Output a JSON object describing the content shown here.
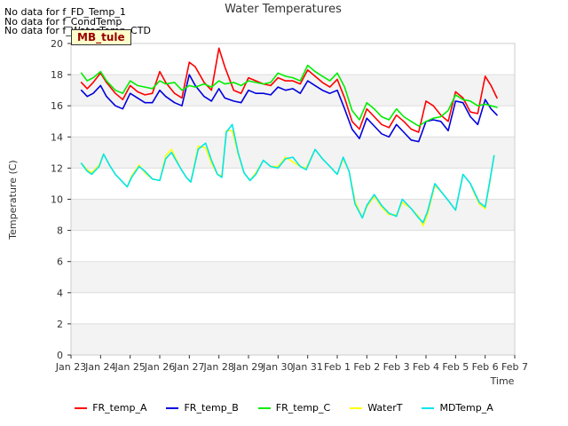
{
  "no_data_messages": [
    "No data for f_FD_Temp_1",
    "No data for f_CondTemp",
    "No data for f_WaterTemp_CTD"
  ],
  "badge": "MB_tule",
  "chart_data": {
    "type": "line",
    "title": "Water Temperatures",
    "xlabel": "Time",
    "ylabel": "Temperature (C)",
    "ylim": [
      0,
      20
    ],
    "yticks": [
      0,
      2,
      4,
      6,
      8,
      10,
      12,
      14,
      16,
      18,
      20
    ],
    "xlim": [
      0,
      15
    ],
    "x_tick_labels": [
      "Jan 23",
      "Jan 24",
      "Jan 25",
      "Jan 26",
      "Jan 27",
      "Jan 28",
      "Jan 29",
      "Jan 30",
      "Jan 31",
      "Feb 1",
      "Feb 2",
      "Feb 3",
      "Feb 4",
      "Feb 5",
      "Feb 6",
      "Feb 7"
    ],
    "x_unit": "days since Jan 23",
    "grid": "horizontal bands",
    "legend_position": "bottom",
    "series": [
      {
        "name": "FR_temp_A",
        "color": "#ff0000",
        "x": [
          0.35,
          0.55,
          0.75,
          1.0,
          1.2,
          1.5,
          1.75,
          2.0,
          2.25,
          2.5,
          2.75,
          3.0,
          3.2,
          3.5,
          3.75,
          4.0,
          4.2,
          4.5,
          4.75,
          5.0,
          5.2,
          5.5,
          5.75,
          6.0,
          6.25,
          6.5,
          6.75,
          7.0,
          7.25,
          7.5,
          7.75,
          8.0,
          8.25,
          8.5,
          8.75,
          9.0,
          9.25,
          9.5,
          9.75,
          10.0,
          10.25,
          10.5,
          10.75,
          11.0,
          11.25,
          11.5,
          11.75,
          12.0,
          12.25,
          12.5,
          12.75,
          13.0,
          13.25,
          13.5,
          13.75,
          14.0,
          14.2,
          14.4
        ],
        "y": [
          17.5,
          17.1,
          17.5,
          18.1,
          17.5,
          16.8,
          16.4,
          17.3,
          16.9,
          16.7,
          16.8,
          18.2,
          17.5,
          16.8,
          16.5,
          18.8,
          18.5,
          17.5,
          17.0,
          19.7,
          18.5,
          17.0,
          16.8,
          17.8,
          17.6,
          17.4,
          17.3,
          17.8,
          17.6,
          17.6,
          17.4,
          18.3,
          17.9,
          17.5,
          17.2,
          17.7,
          16.5,
          15.0,
          14.5,
          15.8,
          15.3,
          14.8,
          14.6,
          15.4,
          15.0,
          14.5,
          14.3,
          16.3,
          16.0,
          15.4,
          15.0,
          16.9,
          16.5,
          15.6,
          15.5,
          17.9,
          17.3,
          16.5
        ]
      },
      {
        "name": "FR_temp_B",
        "color": "#0000dd",
        "x": [
          0.35,
          0.55,
          0.75,
          1.0,
          1.2,
          1.5,
          1.75,
          2.0,
          2.25,
          2.5,
          2.75,
          3.0,
          3.2,
          3.5,
          3.75,
          4.0,
          4.2,
          4.5,
          4.75,
          5.0,
          5.2,
          5.5,
          5.75,
          6.0,
          6.25,
          6.5,
          6.75,
          7.0,
          7.25,
          7.5,
          7.75,
          8.0,
          8.25,
          8.5,
          8.75,
          9.0,
          9.25,
          9.5,
          9.75,
          10.0,
          10.25,
          10.5,
          10.75,
          11.0,
          11.25,
          11.5,
          11.75,
          12.0,
          12.25,
          12.5,
          12.75,
          13.0,
          13.25,
          13.5,
          13.75,
          14.0,
          14.2,
          14.4
        ],
        "y": [
          17.0,
          16.6,
          16.8,
          17.3,
          16.6,
          16.0,
          15.8,
          16.8,
          16.5,
          16.2,
          16.2,
          17.0,
          16.6,
          16.2,
          16.0,
          18.0,
          17.3,
          16.6,
          16.3,
          17.1,
          16.5,
          16.3,
          16.2,
          17.0,
          16.8,
          16.8,
          16.7,
          17.2,
          17.0,
          17.1,
          16.8,
          17.6,
          17.3,
          17.0,
          16.8,
          17.0,
          15.8,
          14.5,
          13.9,
          15.2,
          14.7,
          14.2,
          14.0,
          14.8,
          14.3,
          13.8,
          13.7,
          15.0,
          15.1,
          15.0,
          14.4,
          16.3,
          16.2,
          15.3,
          14.8,
          16.4,
          15.8,
          15.4
        ]
      },
      {
        "name": "FR_temp_C",
        "color": "#00ee00",
        "x": [
          0.35,
          0.55,
          0.75,
          1.0,
          1.2,
          1.5,
          1.75,
          2.0,
          2.25,
          2.5,
          2.75,
          3.0,
          3.2,
          3.5,
          3.75,
          4.0,
          4.2,
          4.5,
          4.75,
          5.0,
          5.2,
          5.5,
          5.75,
          6.0,
          6.25,
          6.5,
          6.75,
          7.0,
          7.25,
          7.5,
          7.75,
          8.0,
          8.25,
          8.5,
          8.75,
          9.0,
          9.25,
          9.5,
          9.75,
          10.0,
          10.25,
          10.5,
          10.75,
          11.0,
          11.25,
          11.5,
          11.75,
          12.0,
          12.25,
          12.5,
          12.75,
          13.0,
          13.25,
          13.5,
          13.75,
          14.0,
          14.2,
          14.4
        ],
        "y": [
          18.1,
          17.6,
          17.8,
          18.2,
          17.6,
          17.0,
          16.8,
          17.6,
          17.3,
          17.2,
          17.1,
          17.6,
          17.4,
          17.5,
          17.0,
          17.3,
          17.2,
          17.4,
          17.2,
          17.6,
          17.4,
          17.5,
          17.3,
          17.6,
          17.5,
          17.4,
          17.5,
          18.1,
          17.9,
          17.8,
          17.6,
          18.6,
          18.2,
          17.9,
          17.6,
          18.1,
          17.2,
          15.7,
          15.1,
          16.2,
          15.8,
          15.3,
          15.1,
          15.8,
          15.3,
          15.0,
          14.7,
          15.0,
          15.2,
          15.3,
          15.7,
          16.7,
          16.4,
          16.3,
          16.0,
          16.1,
          16.0,
          15.9
        ]
      },
      {
        "name": "WaterT",
        "color": "#ffff00",
        "x": [
          0.35,
          0.55,
          0.7,
          0.95,
          1.1,
          1.3,
          1.5,
          1.75,
          1.9,
          2.05,
          2.3,
          2.5,
          2.75,
          3.0,
          3.2,
          3.4,
          3.7,
          3.9,
          4.05,
          4.3,
          4.55,
          4.75,
          4.95,
          5.1,
          5.25,
          5.45,
          5.65,
          5.85,
          6.05,
          6.25,
          6.5,
          6.75,
          7.0,
          7.25,
          7.5,
          7.75,
          7.95,
          8.25,
          8.5,
          8.75,
          9.0,
          9.2,
          9.4,
          9.6,
          9.85,
          10.0,
          10.25,
          10.5,
          10.75,
          11.0,
          11.2,
          11.5,
          11.75,
          11.9,
          12.05,
          12.3,
          12.55,
          12.8,
          13.0,
          13.25,
          13.5,
          13.65,
          13.8,
          14.0,
          14.15,
          14.3
        ],
        "y": [
          12.3,
          11.9,
          11.7,
          12.2,
          12.9,
          12.2,
          11.6,
          11.1,
          10.8,
          11.5,
          12.2,
          11.7,
          11.3,
          11.2,
          12.8,
          13.2,
          12.0,
          11.4,
          11.1,
          13.4,
          13.3,
          12.3,
          11.6,
          11.5,
          14.4,
          14.4,
          12.9,
          11.7,
          11.2,
          11.7,
          12.5,
          12.1,
          12.1,
          12.7,
          12.4,
          12.1,
          12.0,
          13.2,
          12.6,
          12.1,
          11.6,
          12.6,
          11.8,
          9.9,
          8.8,
          9.5,
          10.2,
          9.5,
          9.0,
          9.0,
          9.8,
          9.4,
          8.9,
          8.3,
          9.0,
          10.9,
          10.4,
          9.8,
          9.3,
          11.6,
          11.0,
          10.3,
          9.7,
          9.4,
          11.0,
          12.8
        ]
      },
      {
        "name": "MDTemp_A",
        "color": "#00e5ee",
        "x": [
          0.35,
          0.55,
          0.7,
          0.95,
          1.1,
          1.3,
          1.5,
          1.75,
          1.9,
          2.05,
          2.3,
          2.5,
          2.75,
          3.0,
          3.2,
          3.4,
          3.7,
          3.9,
          4.05,
          4.3,
          4.55,
          4.75,
          4.95,
          5.1,
          5.25,
          5.45,
          5.65,
          5.85,
          6.05,
          6.25,
          6.5,
          6.75,
          7.0,
          7.25,
          7.5,
          7.75,
          7.95,
          8.25,
          8.5,
          8.75,
          9.0,
          9.2,
          9.4,
          9.6,
          9.85,
          10.0,
          10.25,
          10.5,
          10.75,
          11.0,
          11.2,
          11.5,
          11.75,
          11.9,
          12.05,
          12.3,
          12.55,
          12.8,
          13.0,
          13.25,
          13.5,
          13.65,
          13.8,
          14.0,
          14.15,
          14.3
        ],
        "y": [
          12.3,
          11.8,
          11.6,
          12.1,
          12.9,
          12.2,
          11.6,
          11.1,
          10.8,
          11.4,
          12.1,
          11.8,
          11.3,
          11.2,
          12.6,
          13.0,
          12.0,
          11.4,
          11.1,
          13.2,
          13.6,
          12.5,
          11.6,
          11.4,
          14.3,
          14.8,
          13.0,
          11.7,
          11.2,
          11.6,
          12.5,
          12.1,
          12.0,
          12.6,
          12.7,
          12.1,
          11.9,
          13.2,
          12.6,
          12.1,
          11.6,
          12.7,
          11.8,
          9.7,
          8.8,
          9.6,
          10.3,
          9.6,
          9.1,
          8.9,
          10.0,
          9.4,
          8.8,
          8.5,
          9.2,
          11.0,
          10.4,
          9.8,
          9.3,
          11.6,
          11.0,
          10.4,
          9.8,
          9.5,
          11.1,
          12.8
        ]
      }
    ]
  }
}
